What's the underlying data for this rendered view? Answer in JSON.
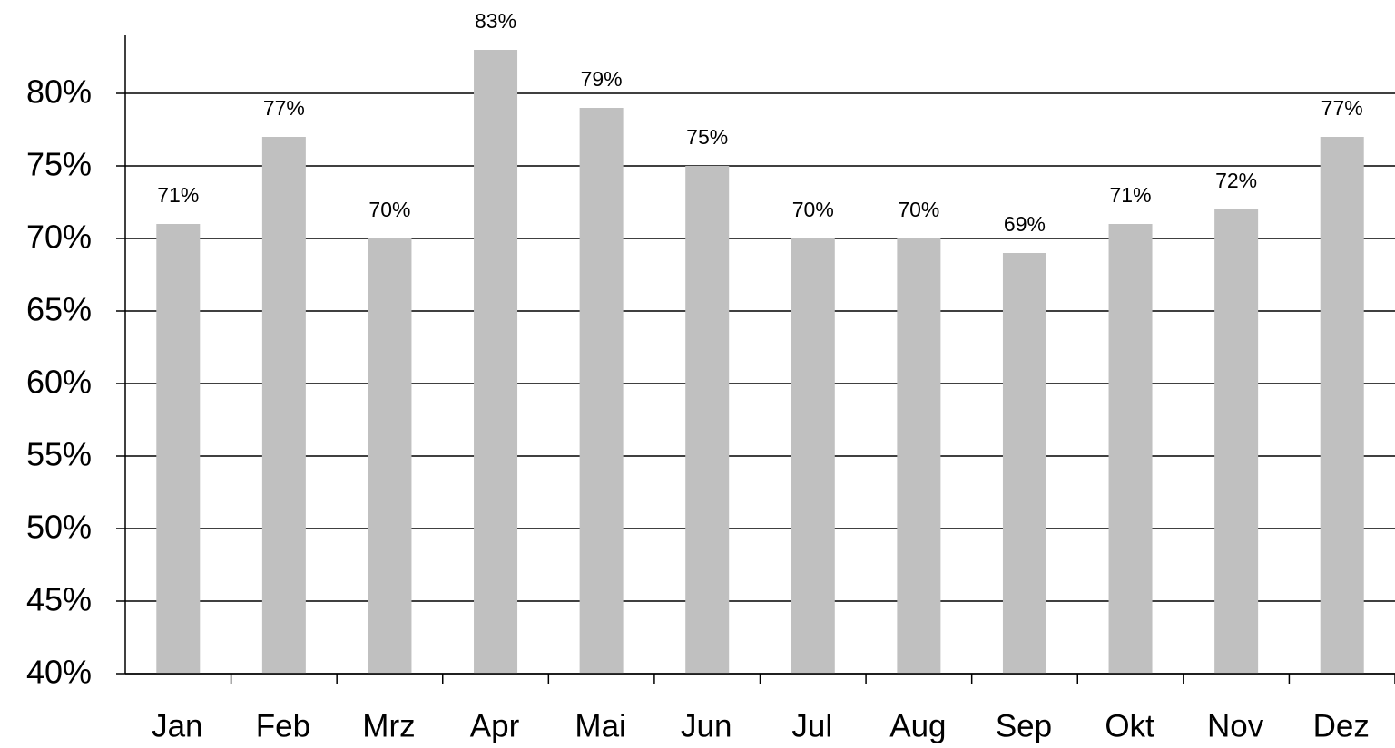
{
  "chart_data": {
    "type": "bar",
    "categories": [
      "Jan",
      "Feb",
      "Mrz",
      "Apr",
      "Mai",
      "Jun",
      "Jul",
      "Aug",
      "Sep",
      "Okt",
      "Nov",
      "Dez"
    ],
    "values": [
      71,
      77,
      70,
      83,
      79,
      75,
      70,
      70,
      69,
      71,
      72,
      77
    ],
    "value_labels": [
      "71%",
      "77%",
      "70%",
      "83%",
      "79%",
      "75%",
      "70%",
      "70%",
      "69%",
      "71%",
      "72%",
      "77%"
    ],
    "color": "#c0c0c0",
    "ylim": [
      40,
      84
    ],
    "yticks": [
      {
        "value": 40,
        "label": "40%"
      },
      {
        "value": 45,
        "label": "45%"
      },
      {
        "value": 50,
        "label": "50%"
      },
      {
        "value": 55,
        "label": "55%"
      },
      {
        "value": 60,
        "label": "60%"
      },
      {
        "value": 65,
        "label": "65%"
      },
      {
        "value": 70,
        "label": "70%"
      },
      {
        "value": 75,
        "label": "75%"
      },
      {
        "value": 80,
        "label": "80%"
      }
    ],
    "grid": true
  }
}
